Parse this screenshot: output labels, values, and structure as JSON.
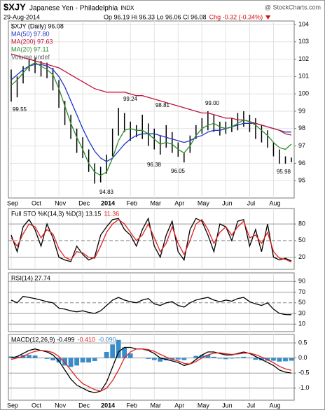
{
  "header": {
    "symbol": "$XJY",
    "name": "Japanese Yen - Philadelphia",
    "exchange": "INDX",
    "date": "29-Aug-2014",
    "quote": "Op 96.19 Hi 96.33 Lo 96.06 Cl 96.08",
    "change": "Chg -0.32 (-0.34%)",
    "source": "@ StockCharts.com"
  },
  "chart_data": [
    {
      "type": "ohlc",
      "categories": [
        "Sep",
        null,
        null,
        null,
        "Oct",
        null,
        null,
        null,
        "Nov",
        null,
        null,
        null,
        "Dec",
        null,
        null,
        null,
        "2014",
        null,
        null,
        null,
        "Feb",
        null,
        null,
        null,
        "Mar",
        null,
        null,
        null,
        "Apr",
        null,
        null,
        null,
        "May",
        null,
        null,
        null,
        "Jun",
        null,
        null,
        null,
        "Jul",
        null,
        null,
        null,
        "Aug",
        null,
        null,
        null
      ],
      "ylim": [
        94.0,
        104.2
      ],
      "yticks": [
        95,
        96,
        97,
        98,
        99,
        100,
        101,
        102,
        103,
        104
      ],
      "grid": true,
      "annotations": [
        "99.55",
        "99.24",
        "98.81",
        "99.00",
        "96.38",
        "96.05",
        "94.83",
        "95.98"
      ],
      "legend_texts": [
        "Volume undef"
      ],
      "series": [
        {
          "name": "$XJY (Daily) 96.08",
          "color": "#000000",
          "high": [
            101.4,
            101.0,
            101.6,
            102.0,
            102.1,
            101.9,
            101.8,
            101.5,
            100.8,
            99.6,
            98.8,
            98.0,
            97.5,
            96.8,
            96.0,
            95.8,
            96.5,
            98.0,
            99.2,
            98.9,
            98.4,
            98.2,
            98.8,
            98.3,
            98.0,
            97.6,
            98.2,
            97.8,
            97.2,
            96.6,
            97.6,
            98.2,
            98.6,
            99.0,
            98.8,
            98.4,
            98.4,
            98.6,
            98.9,
            99.0,
            98.8,
            98.6,
            98.2,
            97.9,
            97.2,
            96.8,
            96.4,
            96.33
          ],
          "low": [
            99.55,
            99.8,
            100.6,
            101.3,
            101.2,
            101.0,
            100.9,
            100.2,
            99.2,
            98.2,
            97.4,
            96.6,
            96.3,
            95.5,
            94.83,
            94.9,
            95.4,
            96.4,
            97.6,
            97.8,
            97.3,
            97.5,
            97.4,
            97.0,
            96.8,
            96.5,
            96.9,
            96.6,
            96.38,
            96.05,
            96.6,
            97.4,
            97.7,
            97.9,
            97.8,
            97.6,
            97.7,
            97.8,
            97.9,
            98.1,
            97.8,
            97.4,
            97.2,
            96.9,
            96.4,
            95.98,
            95.98,
            96.06
          ]
        },
        {
          "name": "MA(50) 97.80",
          "color": "#1f35c8",
          "values": [
            100.8,
            101.1,
            101.4,
            101.6,
            101.7,
            101.7,
            101.6,
            101.4,
            101.0,
            100.4,
            99.6,
            98.8,
            98.0,
            97.3,
            96.7,
            96.3,
            96.1,
            96.3,
            96.7,
            97.1,
            97.4,
            97.6,
            97.7,
            97.7,
            97.7,
            97.6,
            97.5,
            97.4,
            97.3,
            97.2,
            97.3,
            97.5,
            97.6,
            97.8,
            97.9,
            97.9,
            98.0,
            98.1,
            98.2,
            98.3,
            98.3,
            98.3,
            98.2,
            98.1,
            98.0,
            97.9,
            97.8,
            97.8
          ]
        },
        {
          "name": "MA(200) 97.63",
          "color": "#c0143c",
          "values": [
            102.3,
            102.2,
            102.1,
            102.0,
            101.9,
            101.8,
            101.7,
            101.6,
            101.5,
            101.3,
            101.1,
            100.9,
            100.7,
            100.5,
            100.3,
            100.2,
            100.1,
            100.1,
            100.1,
            100.1,
            100.0,
            99.9,
            99.9,
            99.8,
            99.7,
            99.6,
            99.5,
            99.4,
            99.3,
            99.2,
            99.1,
            99.0,
            98.9,
            98.9,
            98.8,
            98.7,
            98.6,
            98.6,
            98.5,
            98.5,
            98.4,
            98.3,
            98.2,
            98.1,
            98.0,
            97.9,
            97.7,
            97.63
          ]
        },
        {
          "name": "MA(20) 97.11",
          "color": "#2e8b2e",
          "values": [
            100.5,
            100.8,
            101.2,
            101.6,
            101.8,
            101.6,
            101.4,
            101.1,
            100.3,
            99.3,
            98.3,
            97.5,
            96.8,
            96.0,
            95.5,
            95.3,
            95.5,
            96.3,
            97.3,
            97.9,
            98.0,
            97.9,
            97.9,
            97.7,
            97.4,
            97.1,
            97.2,
            97.1,
            96.8,
            96.6,
            97.0,
            97.6,
            98.0,
            98.2,
            98.3,
            98.1,
            98.0,
            98.1,
            98.3,
            98.5,
            98.4,
            98.2,
            97.9,
            97.6,
            97.2,
            96.9,
            96.8,
            97.11
          ]
        }
      ]
    },
    {
      "type": "line",
      "ylim": [
        -2,
        108
      ],
      "yticks": [
        20,
        50,
        80
      ],
      "grid": true,
      "series": [
        {
          "name": "Full STO %K(14,3) %D(3) 13.15",
          "color": "#000000",
          "values": [
            60,
            30,
            75,
            88,
            70,
            40,
            80,
            55,
            20,
            15,
            12,
            40,
            25,
            15,
            20,
            60,
            75,
            88,
            90,
            70,
            60,
            40,
            70,
            90,
            40,
            20,
            60,
            85,
            30,
            15,
            70,
            90,
            85,
            60,
            30,
            80,
            75,
            50,
            85,
            88,
            40,
            70,
            30,
            80,
            20,
            15,
            18,
            13.15
          ]
        },
        {
          "name": "11.36",
          "color": "#e02020",
          "values": [
            55,
            40,
            62,
            80,
            75,
            55,
            70,
            62,
            35,
            20,
            15,
            30,
            28,
            20,
            18,
            40,
            65,
            80,
            88,
            80,
            65,
            50,
            60,
            80,
            55,
            30,
            45,
            75,
            45,
            25,
            50,
            80,
            88,
            70,
            45,
            65,
            75,
            60,
            75,
            85,
            55,
            60,
            45,
            65,
            30,
            18,
            16,
            11.36
          ]
        }
      ]
    },
    {
      "type": "line",
      "ylim": [
        -4,
        106
      ],
      "yticks": [
        10,
        30,
        50,
        70,
        90
      ],
      "grid": true,
      "series": [
        {
          "name": "RSI(14) 27.74",
          "color": "#000000",
          "values": [
            55,
            50,
            62,
            60,
            58,
            55,
            52,
            50,
            40,
            38,
            35,
            33,
            35,
            32,
            30,
            35,
            45,
            55,
            60,
            55,
            52,
            50,
            55,
            58,
            48,
            45,
            50,
            52,
            45,
            42,
            50,
            55,
            58,
            60,
            55,
            52,
            55,
            53,
            58,
            60,
            52,
            48,
            45,
            50,
            38,
            30,
            28,
            27.74
          ]
        }
      ]
    },
    {
      "type": "line",
      "categories": [
        "Sep",
        null,
        null,
        null,
        "Oct",
        null,
        null,
        null,
        "Nov",
        null,
        null,
        null,
        "Dec",
        null,
        null,
        null,
        "2014",
        null,
        null,
        null,
        "Feb",
        null,
        null,
        null,
        "Mar",
        null,
        null,
        null,
        "Apr",
        null,
        null,
        null,
        "May",
        null,
        null,
        null,
        "Jun",
        null,
        null,
        null,
        "Jul",
        null,
        null,
        null,
        "Aug",
        null,
        null,
        null
      ],
      "ylim": [
        -1.4,
        0.78
      ],
      "yticks": [
        {
          "value": -1.0,
          "label": "-1.0"
        },
        -0.5,
        {
          "value": 0,
          "label": "0.0"
        },
        0.5
      ],
      "grid": true,
      "series": [
        {
          "name": "-0.090",
          "color": "#3a8cc8",
          "style": "histogram",
          "values": [
            0.05,
            0.05,
            0.1,
            0.1,
            0.08,
            0,
            -0.03,
            -0.08,
            -0.15,
            -0.25,
            -0.3,
            -0.25,
            -0.15,
            -0.15,
            -0.1,
            0,
            0.2,
            0.45,
            0.6,
            0.35,
            0.15,
            0,
            0,
            -0.03,
            -0.07,
            -0.12,
            -0.08,
            -0.05,
            -0.05,
            -0.07,
            0,
            0.07,
            0.1,
            0.1,
            0.04,
            -0.02,
            -0.04,
            -0.02,
            0.02,
            0.04,
            -0.01,
            -0.06,
            -0.08,
            -0.09,
            -0.09,
            -0.12,
            -0.11,
            -0.09
          ]
        },
        {
          "name": "MACD(12,26,9) -0.499",
          "color": "#000000",
          "values": [
            0.0,
            0.05,
            0.15,
            0.25,
            0.3,
            0.25,
            0.2,
            0.1,
            -0.1,
            -0.4,
            -0.7,
            -0.9,
            -1.0,
            -1.1,
            -1.15,
            -1.1,
            -0.8,
            -0.3,
            0.2,
            0.35,
            0.35,
            0.3,
            0.3,
            0.25,
            0.15,
            0.0,
            -0.05,
            -0.1,
            -0.15,
            -0.25,
            -0.2,
            -0.05,
            0.1,
            0.2,
            0.2,
            0.15,
            0.1,
            0.1,
            0.15,
            0.2,
            0.15,
            0.05,
            -0.05,
            -0.15,
            -0.25,
            -0.4,
            -0.47,
            -0.499
          ]
        },
        {
          "name": "-0.410",
          "color": "#e02020",
          "values": [
            -0.05,
            0.0,
            0.05,
            0.15,
            0.22,
            0.25,
            0.23,
            0.18,
            0.05,
            -0.15,
            -0.4,
            -0.65,
            -0.85,
            -0.95,
            -1.05,
            -1.1,
            -1.0,
            -0.75,
            -0.4,
            0.0,
            0.2,
            0.3,
            0.3,
            0.28,
            0.22,
            0.12,
            0.03,
            -0.05,
            -0.1,
            -0.18,
            -0.2,
            -0.12,
            0.0,
            0.1,
            0.16,
            0.17,
            0.14,
            0.12,
            0.13,
            0.16,
            0.16,
            0.11,
            0.03,
            -0.06,
            -0.16,
            -0.28,
            -0.36,
            -0.41
          ]
        }
      ]
    }
  ]
}
